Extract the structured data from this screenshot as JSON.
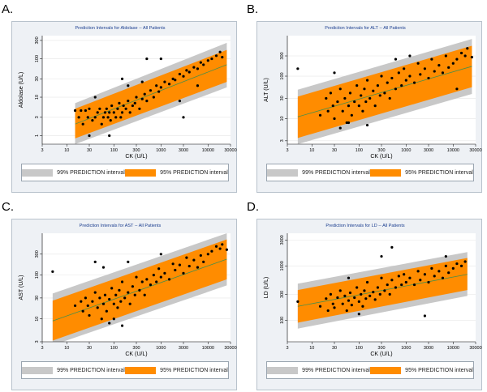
{
  "panels": [
    {
      "letter": "A."
    },
    {
      "letter": "B."
    },
    {
      "letter": "C."
    },
    {
      "letter": "D."
    }
  ],
  "legend": {
    "p99_label": "99% PREDICTION interval",
    "p95_label": "95% PREDICTION interval",
    "p99_color": "#c8c8c8",
    "p95_color": "#ff8c00"
  },
  "chart_data": [
    {
      "type": "scatter",
      "title": "Prediction Intervals for Aldolase -- All Patients",
      "xlabel": "CK (U/L)",
      "ylabel": "Aldolase (U/L)",
      "x_scale": "log",
      "y_scale": "log",
      "xlim": [
        3,
        30000
      ],
      "ylim": [
        0.6,
        400
      ],
      "x_ticks": [
        3,
        10,
        30,
        100,
        300,
        1000,
        3000,
        10000,
        30000
      ],
      "x_tick_labels": [
        "3",
        "10",
        "30",
        "100",
        "300",
        "1000",
        "3000",
        "10000",
        "30000"
      ],
      "y_ticks": [
        1,
        3,
        10,
        30,
        100,
        300
      ],
      "y_tick_labels": [
        "1",
        "3",
        "10",
        "30",
        "100",
        "300"
      ],
      "fit_line": [
        [
          15,
          2.0
        ],
        [
          25000,
          70
        ]
      ],
      "band_95_lower": [
        [
          15,
          0.85
        ],
        [
          25000,
          25
        ]
      ],
      "band_95_upper": [
        [
          15,
          5.0
        ],
        [
          25000,
          170
        ]
      ],
      "band_99_lower": [
        [
          15,
          0.6
        ],
        [
          25000,
          18
        ]
      ],
      "band_99_upper": [
        [
          15,
          7.0
        ],
        [
          25000,
          260
        ]
      ],
      "points": [
        [
          15,
          4.5
        ],
        [
          18,
          3
        ],
        [
          20,
          4.5
        ],
        [
          22,
          2
        ],
        [
          25,
          4.5
        ],
        [
          28,
          3
        ],
        [
          30,
          5
        ],
        [
          35,
          2.5
        ],
        [
          40,
          3
        ],
        [
          45,
          4
        ],
        [
          50,
          5
        ],
        [
          55,
          2
        ],
        [
          60,
          3
        ],
        [
          65,
          4
        ],
        [
          70,
          5
        ],
        [
          75,
          3
        ],
        [
          80,
          4
        ],
        [
          85,
          2.5
        ],
        [
          90,
          6
        ],
        [
          100,
          4
        ],
        [
          110,
          3
        ],
        [
          120,
          5
        ],
        [
          130,
          7
        ],
        [
          140,
          3
        ],
        [
          150,
          4
        ],
        [
          160,
          6
        ],
        [
          180,
          5
        ],
        [
          200,
          8
        ],
        [
          220,
          4
        ],
        [
          250,
          6
        ],
        [
          280,
          7
        ],
        [
          300,
          10
        ],
        [
          350,
          5
        ],
        [
          400,
          9
        ],
        [
          450,
          12
        ],
        [
          500,
          8
        ],
        [
          600,
          15
        ],
        [
          700,
          10
        ],
        [
          800,
          20
        ],
        [
          900,
          14
        ],
        [
          1000,
          18
        ],
        [
          1200,
          25
        ],
        [
          1500,
          22
        ],
        [
          1800,
          30
        ],
        [
          2000,
          28
        ],
        [
          2500,
          40
        ],
        [
          3000,
          35
        ],
        [
          3500,
          50
        ],
        [
          4000,
          45
        ],
        [
          5000,
          60
        ],
        [
          6000,
          55
        ],
        [
          7000,
          80
        ],
        [
          8000,
          70
        ],
        [
          10000,
          90
        ],
        [
          12000,
          100
        ],
        [
          15000,
          120
        ],
        [
          18000,
          150
        ],
        [
          20000,
          110
        ],
        [
          3000,
          3
        ],
        [
          1000,
          100
        ],
        [
          500,
          100
        ],
        [
          150,
          30
        ],
        [
          200,
          20
        ],
        [
          40,
          10
        ],
        [
          2500,
          8
        ],
        [
          30,
          1
        ],
        [
          80,
          1
        ],
        [
          6000,
          20
        ],
        [
          400,
          25
        ]
      ]
    },
    {
      "type": "scatter",
      "title": "Prediction Intervals for ALT -- All Patients",
      "xlabel": "CK (U/L)",
      "ylabel": "ALT (U/L)",
      "x_scale": "log",
      "y_scale": "log",
      "xlim": [
        3,
        30000
      ],
      "ylim": [
        2.5,
        900
      ],
      "x_ticks": [
        3,
        10,
        30,
        100,
        300,
        1000,
        3000,
        10000,
        30000
      ],
      "x_tick_labels": [
        "3",
        "10",
        "30",
        "100",
        "300",
        "1000",
        "3000",
        "10000",
        "30000"
      ],
      "y_ticks": [
        3,
        10,
        30,
        100,
        300
      ],
      "y_tick_labels": [
        "3",
        "10",
        "30",
        "100",
        "300"
      ],
      "fit_line": [
        [
          5,
          11
        ],
        [
          25000,
          170
        ]
      ],
      "band_95_lower": [
        [
          5,
          3.5
        ],
        [
          25000,
          55
        ]
      ],
      "band_95_upper": [
        [
          5,
          33
        ],
        [
          25000,
          520
        ]
      ],
      "band_99_lower": [
        [
          5,
          2.5
        ],
        [
          25000,
          38
        ]
      ],
      "band_99_upper": [
        [
          5,
          48
        ],
        [
          25000,
          750
        ]
      ],
      "points": [
        [
          5,
          150
        ],
        [
          15,
          12
        ],
        [
          20,
          30
        ],
        [
          22,
          15
        ],
        [
          25,
          40
        ],
        [
          28,
          20
        ],
        [
          30,
          10
        ],
        [
          35,
          25
        ],
        [
          40,
          50
        ],
        [
          45,
          15
        ],
        [
          50,
          30
        ],
        [
          55,
          8
        ],
        [
          60,
          20
        ],
        [
          65,
          40
        ],
        [
          70,
          12
        ],
        [
          80,
          25
        ],
        [
          90,
          60
        ],
        [
          100,
          20
        ],
        [
          110,
          35
        ],
        [
          120,
          15
        ],
        [
          130,
          50
        ],
        [
          140,
          25
        ],
        [
          150,
          80
        ],
        [
          170,
          30
        ],
        [
          200,
          45
        ],
        [
          220,
          20
        ],
        [
          250,
          60
        ],
        [
          280,
          35
        ],
        [
          300,
          100
        ],
        [
          350,
          40
        ],
        [
          400,
          70
        ],
        [
          450,
          30
        ],
        [
          500,
          90
        ],
        [
          600,
          50
        ],
        [
          700,
          120
        ],
        [
          800,
          60
        ],
        [
          900,
          150
        ],
        [
          1000,
          80
        ],
        [
          1200,
          100
        ],
        [
          1500,
          70
        ],
        [
          1800,
          200
        ],
        [
          2000,
          110
        ],
        [
          2500,
          150
        ],
        [
          3000,
          90
        ],
        [
          3500,
          250
        ],
        [
          4000,
          130
        ],
        [
          5000,
          180
        ],
        [
          6000,
          120
        ],
        [
          7000,
          300
        ],
        [
          8000,
          160
        ],
        [
          10000,
          200
        ],
        [
          12000,
          250
        ],
        [
          15000,
          350
        ],
        [
          18000,
          300
        ],
        [
          20000,
          450
        ],
        [
          25000,
          280
        ],
        [
          12000,
          50
        ],
        [
          1200,
          300
        ],
        [
          600,
          250
        ],
        [
          30,
          120
        ],
        [
          60,
          8
        ],
        [
          150,
          7
        ],
        [
          40,
          6
        ]
      ]
    },
    {
      "type": "scatter",
      "title": "Prediction Intervals for AST -- All Patients",
      "xlabel": "CK (U/L)",
      "ylabel": "AST (U/L)",
      "x_scale": "log",
      "y_scale": "log",
      "xlim": [
        3,
        30000
      ],
      "ylim": [
        3,
        900
      ],
      "x_ticks": [
        3,
        10,
        30,
        100,
        300,
        1000,
        3000,
        10000,
        30000
      ],
      "x_tick_labels": [
        "3",
        "10",
        "30",
        "100",
        "300",
        "1000",
        "3000",
        "10000",
        "30000"
      ],
      "y_ticks": [
        3,
        10,
        30,
        100,
        300
      ],
      "y_tick_labels": [
        "3",
        "10",
        "30",
        "100",
        "300"
      ],
      "fit_line": [
        [
          5,
          9
        ],
        [
          25000,
          230
        ]
      ],
      "band_95_lower": [
        [
          5,
          3.2
        ],
        [
          25000,
          80
        ]
      ],
      "band_95_upper": [
        [
          5,
          26
        ],
        [
          25000,
          650
        ]
      ],
      "band_99_lower": [
        [
          5,
          2.5
        ],
        [
          25000,
          58
        ]
      ],
      "band_99_upper": [
        [
          5,
          38
        ],
        [
          25000,
          900
        ]
      ],
      "points": [
        [
          5,
          120
        ],
        [
          15,
          20
        ],
        [
          20,
          25
        ],
        [
          22,
          15
        ],
        [
          25,
          30
        ],
        [
          28,
          20
        ],
        [
          30,
          12
        ],
        [
          35,
          25
        ],
        [
          40,
          40
        ],
        [
          45,
          18
        ],
        [
          50,
          30
        ],
        [
          55,
          10
        ],
        [
          60,
          22
        ],
        [
          65,
          35
        ],
        [
          70,
          15
        ],
        [
          80,
          28
        ],
        [
          90,
          50
        ],
        [
          100,
          22
        ],
        [
          110,
          35
        ],
        [
          120,
          18
        ],
        [
          130,
          45
        ],
        [
          140,
          25
        ],
        [
          150,
          70
        ],
        [
          170,
          30
        ],
        [
          200,
          40
        ],
        [
          220,
          22
        ],
        [
          250,
          55
        ],
        [
          280,
          35
        ],
        [
          300,
          90
        ],
        [
          350,
          45
        ],
        [
          400,
          70
        ],
        [
          450,
          35
        ],
        [
          500,
          80
        ],
        [
          600,
          60
        ],
        [
          700,
          100
        ],
        [
          800,
          70
        ],
        [
          900,
          140
        ],
        [
          1000,
          90
        ],
        [
          1200,
          110
        ],
        [
          1500,
          80
        ],
        [
          1800,
          180
        ],
        [
          2000,
          130
        ],
        [
          2500,
          170
        ],
        [
          3000,
          110
        ],
        [
          3500,
          250
        ],
        [
          4000,
          160
        ],
        [
          5000,
          220
        ],
        [
          6000,
          150
        ],
        [
          7000,
          280
        ],
        [
          8000,
          200
        ],
        [
          10000,
          300
        ],
        [
          12000,
          350
        ],
        [
          15000,
          450
        ],
        [
          18000,
          400
        ],
        [
          20000,
          500
        ],
        [
          25000,
          380
        ],
        [
          40,
          200
        ],
        [
          60,
          150
        ],
        [
          200,
          200
        ],
        [
          1000,
          300
        ],
        [
          80,
          8
        ],
        [
          100,
          10
        ],
        [
          150,
          7
        ]
      ]
    },
    {
      "type": "scatter",
      "title": "Prediction Intervals for LD -- All Patients",
      "xlabel": "CK (U/L)",
      "ylabel": "LD (U/L)",
      "x_scale": "log",
      "y_scale": "log",
      "xlim": [
        3,
        30000
      ],
      "ylim": [
        40,
        4000
      ],
      "x_ticks": [
        3,
        10,
        30,
        100,
        300,
        1000,
        3000,
        10000,
        30000
      ],
      "x_tick_labels": [
        "3",
        "10",
        "30",
        "100",
        "300",
        "1000",
        "3000",
        "10000",
        "30000"
      ],
      "y_ticks": [
        100,
        300,
        1000,
        3000
      ],
      "y_tick_labels": [
        "100",
        "300",
        "1000",
        "3000"
      ],
      "fit_line": [
        [
          5,
          180
        ],
        [
          20000,
          700
        ]
      ],
      "band_95_lower": [
        [
          5,
          90
        ],
        [
          20000,
          360
        ]
      ],
      "band_95_upper": [
        [
          5,
          360
        ],
        [
          20000,
          1400
        ]
      ],
      "band_99_lower": [
        [
          5,
          70
        ],
        [
          20000,
          280
        ]
      ],
      "band_99_upper": [
        [
          5,
          470
        ],
        [
          20000,
          1800
        ]
      ],
      "points": [
        [
          5,
          220
        ],
        [
          15,
          180
        ],
        [
          20,
          250
        ],
        [
          22,
          150
        ],
        [
          25,
          300
        ],
        [
          28,
          200
        ],
        [
          30,
          170
        ],
        [
          35,
          260
        ],
        [
          40,
          350
        ],
        [
          45,
          200
        ],
        [
          50,
          280
        ],
        [
          55,
          150
        ],
        [
          60,
          230
        ],
        [
          65,
          320
        ],
        [
          70,
          190
        ],
        [
          80,
          260
        ],
        [
          90,
          400
        ],
        [
          100,
          220
        ],
        [
          110,
          300
        ],
        [
          120,
          180
        ],
        [
          130,
          350
        ],
        [
          140,
          250
        ],
        [
          150,
          500
        ],
        [
          170,
          280
        ],
        [
          200,
          330
        ],
        [
          220,
          240
        ],
        [
          250,
          400
        ],
        [
          280,
          300
        ],
        [
          300,
          600
        ],
        [
          350,
          350
        ],
        [
          400,
          450
        ],
        [
          450,
          300
        ],
        [
          500,
          550
        ],
        [
          600,
          400
        ],
        [
          700,
          650
        ],
        [
          800,
          450
        ],
        [
          900,
          700
        ],
        [
          1000,
          500
        ],
        [
          1200,
          600
        ],
        [
          1500,
          450
        ],
        [
          1800,
          800
        ],
        [
          2000,
          550
        ],
        [
          2500,
          700
        ],
        [
          3000,
          500
        ],
        [
          3500,
          900
        ],
        [
          4000,
          650
        ],
        [
          5000,
          800
        ],
        [
          6000,
          600
        ],
        [
          7000,
          1000
        ],
        [
          8000,
          750
        ],
        [
          10000,
          900
        ],
        [
          12000,
          1100
        ],
        [
          15000,
          1000
        ],
        [
          18000,
          1200
        ],
        [
          500,
          2200
        ],
        [
          300,
          1500
        ],
        [
          7000,
          1500
        ],
        [
          2500,
          120
        ],
        [
          60,
          600
        ],
        [
          100,
          130
        ]
      ]
    }
  ]
}
